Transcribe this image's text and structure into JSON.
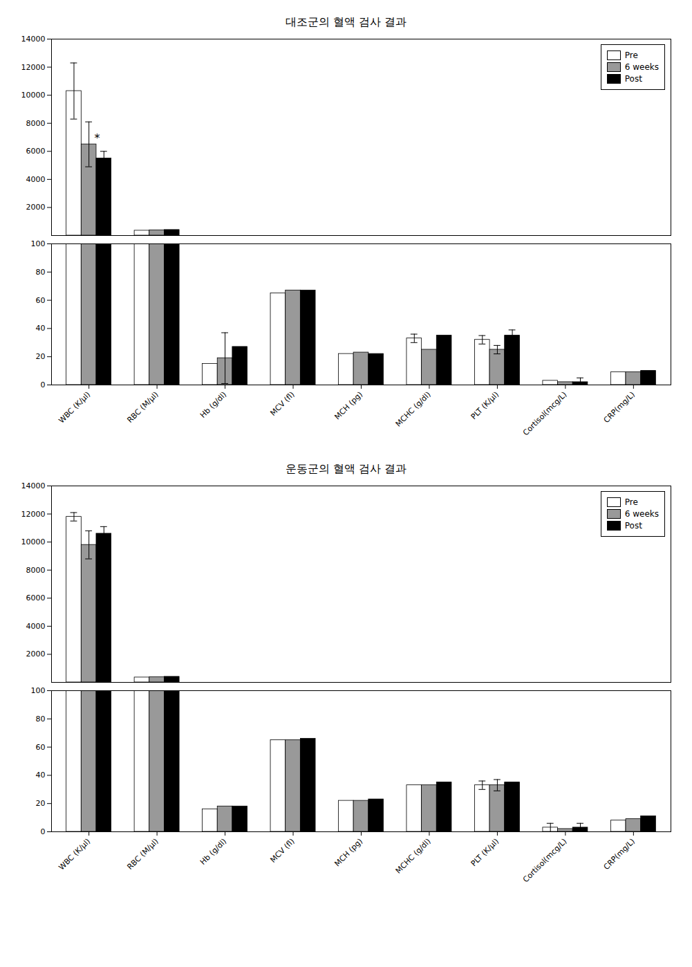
{
  "chart_data": [
    {
      "type": "bar",
      "title": "대조군의 혈액 검사 결과",
      "categories": [
        "WBC (K/μl)",
        "RBC (M/μl)",
        "Hb (g/dl)",
        "MCV (fl)",
        "MCH (pg)",
        "MCHC (g/dl)",
        "PLT (K/μl)",
        "Cortisol(mcg/L)",
        "CRP(mg/L)"
      ],
      "series": [
        {
          "name": "Pre",
          "color": "white",
          "values": [
            10300,
            350,
            null,
            null,
            null,
            null,
            null,
            null,
            null
          ],
          "errors": [
            2000,
            null,
            null,
            null,
            null,
            null,
            null,
            null,
            null
          ]
        },
        {
          "name": "6 weeks",
          "color": "#999999",
          "values": [
            6500,
            380,
            null,
            null,
            null,
            null,
            null,
            null,
            null
          ],
          "errors": [
            1600,
            null,
            null,
            null,
            null,
            null,
            null,
            null,
            null
          ]
        },
        {
          "name": "Post",
          "color": "black",
          "values": [
            5500,
            400,
            null,
            null,
            null,
            null,
            null,
            null,
            null
          ],
          "errors": [
            500,
            null,
            null,
            null,
            null,
            null,
            null,
            null,
            null
          ]
        }
      ],
      "ylim": [
        0,
        14000
      ],
      "yticks": [
        2000,
        4000,
        6000,
        8000,
        10000,
        12000,
        14000
      ],
      "tick_labels": "y",
      "legend": "upper right",
      "annotations": [
        {
          "text": "*",
          "category": "WBC (K/μl)",
          "series": "6 weeks",
          "y": 6700
        }
      ]
    },
    {
      "type": "bar",
      "categories": [
        "WBC (K/μl)",
        "RBC (M/μl)",
        "Hb (g/dl)",
        "MCV (fl)",
        "MCH (pg)",
        "MCHC (g/dl)",
        "PLT (K/μl)",
        "Cortisol(mcg/L)",
        "CRP(mg/L)"
      ],
      "series": [
        {
          "name": "Pre",
          "color": "white",
          "values": [
            100,
            100,
            15,
            65,
            22,
            33,
            32,
            3,
            9
          ],
          "errors": [
            null,
            null,
            null,
            null,
            null,
            3,
            3,
            null,
            null
          ]
        },
        {
          "name": "6 weeks",
          "color": "#999999",
          "values": [
            100,
            100,
            19,
            67,
            23,
            25,
            25,
            2,
            9
          ],
          "errors": [
            null,
            null,
            18,
            null,
            null,
            null,
            3,
            null,
            null
          ]
        },
        {
          "name": "Post",
          "color": "black",
          "values": [
            100,
            100,
            27,
            67,
            22,
            35,
            35,
            2,
            10
          ],
          "errors": [
            null,
            null,
            null,
            null,
            null,
            null,
            4,
            3,
            null
          ]
        }
      ],
      "ylim": [
        0,
        100
      ],
      "yticks": [
        0,
        20,
        40,
        60,
        80,
        100
      ]
    },
    {
      "type": "bar",
      "title": "운동군의 혈액 검사 결과",
      "categories": [
        "WBC (K/μl)",
        "RBC (M/μl)",
        "Hb (g/dl)",
        "MCV (fl)",
        "MCH (pg)",
        "MCHC (g/dl)",
        "PLT (K/μl)",
        "Cortisol(mcg/L)",
        "CRP(mg/L)"
      ],
      "series": [
        {
          "name": "Pre",
          "color": "white",
          "values": [
            11800,
            350,
            null,
            null,
            null,
            null,
            null,
            null,
            null
          ],
          "errors": [
            300,
            null,
            null,
            null,
            null,
            null,
            null,
            null,
            null
          ]
        },
        {
          "name": "6 weeks",
          "color": "#999999",
          "values": [
            9800,
            380,
            null,
            null,
            null,
            null,
            null,
            null,
            null
          ],
          "errors": [
            1000,
            null,
            null,
            null,
            null,
            null,
            null,
            null,
            null
          ]
        },
        {
          "name": "Post",
          "color": "black",
          "values": [
            10600,
            400,
            null,
            null,
            null,
            null,
            null,
            null,
            null
          ],
          "errors": [
            500,
            null,
            null,
            null,
            null,
            null,
            null,
            null,
            null
          ]
        }
      ],
      "ylim": [
        0,
        14000
      ],
      "yticks": [
        2000,
        4000,
        6000,
        8000,
        10000,
        12000,
        14000
      ],
      "tick_labels": "y",
      "legend": "upper right"
    },
    {
      "type": "bar",
      "categories": [
        "WBC (K/μl)",
        "RBC (M/μl)",
        "Hb (g/dl)",
        "MCV (fl)",
        "MCH (pg)",
        "MCHC (g/dl)",
        "PLT (K/μl)",
        "Cortisol(mcg/L)",
        "CRP(mg/L)"
      ],
      "series": [
        {
          "name": "Pre",
          "color": "white",
          "values": [
            100,
            100,
            16,
            65,
            22,
            33,
            33,
            3,
            8
          ],
          "errors": [
            null,
            null,
            null,
            null,
            null,
            null,
            3,
            3,
            null
          ]
        },
        {
          "name": "6 weeks",
          "color": "#999999",
          "values": [
            100,
            100,
            18,
            65,
            22,
            33,
            33,
            2,
            9
          ],
          "errors": [
            null,
            null,
            null,
            null,
            null,
            null,
            4,
            null,
            null
          ]
        },
        {
          "name": "Post",
          "color": "black",
          "values": [
            100,
            100,
            18,
            66,
            23,
            35,
            35,
            3,
            11
          ],
          "errors": [
            null,
            null,
            null,
            null,
            null,
            null,
            null,
            3,
            null
          ]
        }
      ],
      "ylim": [
        0,
        100
      ],
      "yticks": [
        0,
        20,
        40,
        60,
        80,
        100
      ]
    }
  ]
}
